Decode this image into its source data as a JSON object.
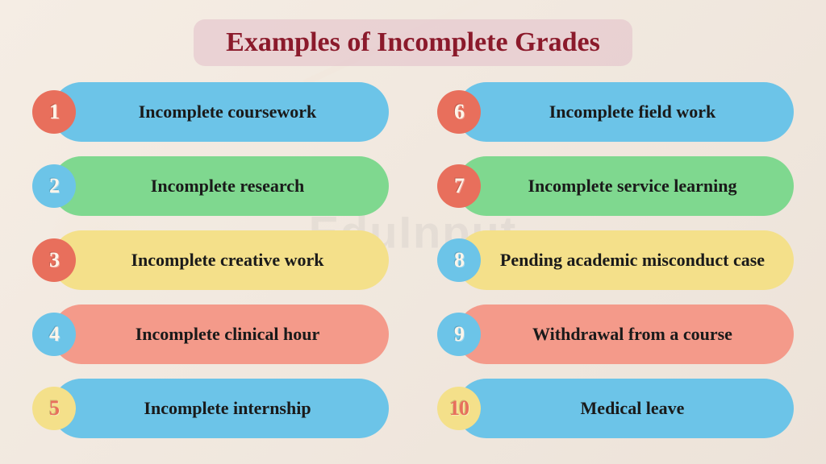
{
  "title": "Examples of Incomplete Grades",
  "title_color": "#8b1a2b",
  "title_bg": "rgba(225,190,200,0.55)",
  "watermark": "EduInput",
  "colors": {
    "blue": "#6cc4e8",
    "green": "#7fd88f",
    "yellow": "#f4e08a",
    "coral": "#f49a8a",
    "coral_dark": "#e86f5c",
    "num_light": "#fdf5ea",
    "num_coral": "#e86f5c"
  },
  "left": [
    {
      "n": "1",
      "label": "Incomplete coursework",
      "pill": "blue",
      "badge": "coral_dark",
      "num": "num_light"
    },
    {
      "n": "2",
      "label": "Incomplete research",
      "pill": "green",
      "badge": "blue",
      "num": "num_light"
    },
    {
      "n": "3",
      "label": "Incomplete creative work",
      "pill": "yellow",
      "badge": "coral_dark",
      "num": "num_light"
    },
    {
      "n": "4",
      "label": "Incomplete clinical hour",
      "pill": "coral",
      "badge": "blue",
      "num": "num_light"
    },
    {
      "n": "5",
      "label": "Incomplete internship",
      "pill": "blue",
      "badge": "yellow",
      "num": "num_coral"
    }
  ],
  "right": [
    {
      "n": "6",
      "label": "Incomplete field work",
      "pill": "blue",
      "badge": "coral_dark",
      "num": "num_light"
    },
    {
      "n": "7",
      "label": "Incomplete service learning",
      "pill": "green",
      "badge": "coral_dark",
      "num": "num_light"
    },
    {
      "n": "8",
      "label": "Pending academic misconduct case",
      "pill": "yellow",
      "badge": "blue",
      "num": "num_light"
    },
    {
      "n": "9",
      "label": "Withdrawal from a course",
      "pill": "coral",
      "badge": "blue",
      "num": "num_light"
    },
    {
      "n": "10",
      "label": "Medical leave",
      "pill": "blue",
      "badge": "yellow",
      "num": "num_coral"
    }
  ]
}
